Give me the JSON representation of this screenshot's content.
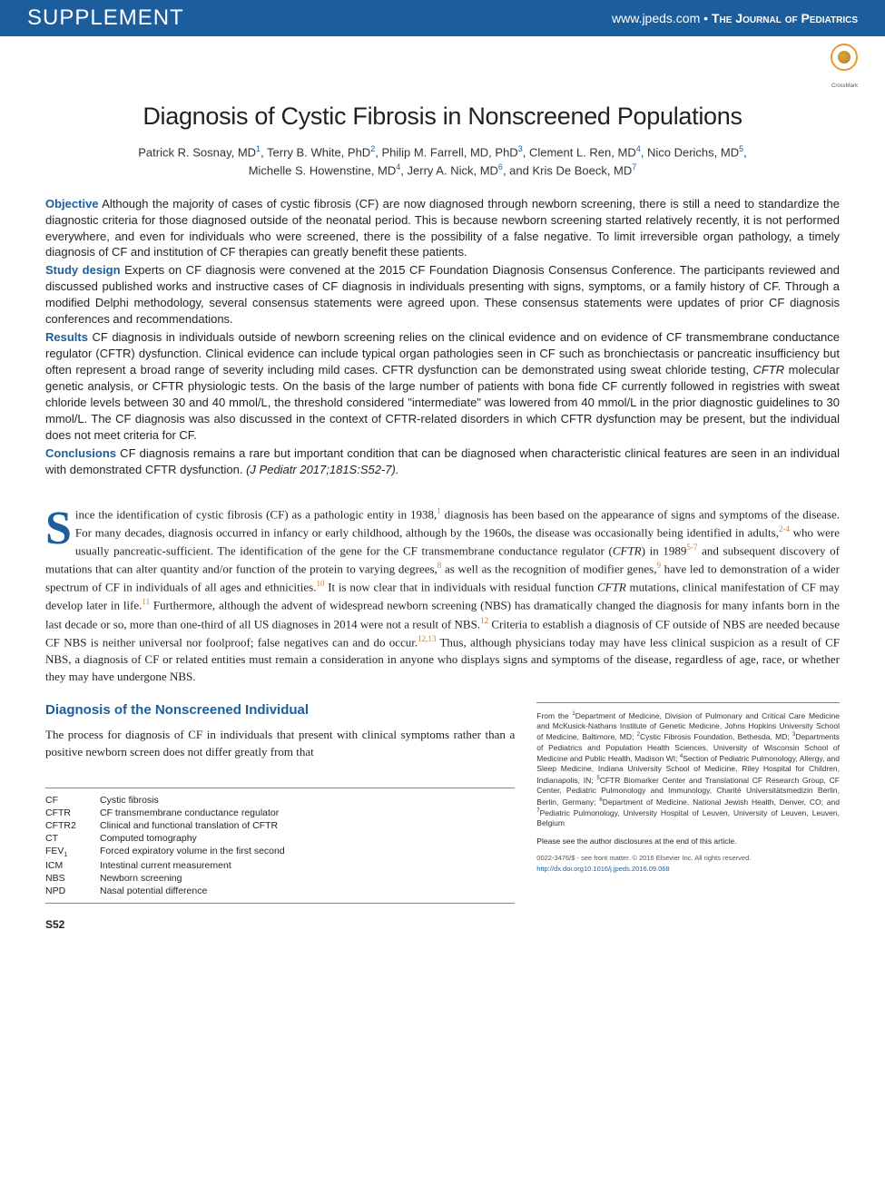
{
  "header": {
    "supplement": "SUPPLEMENT",
    "url": "www.jpeds.com",
    "dot": " • ",
    "journal": "The Journal of Pediatrics",
    "crossmark_label": "CrossMark"
  },
  "title": "Diagnosis of Cystic Fibrosis in Nonscreened Populations",
  "authors_html": "Patrick R. Sosnay, MD<sup>1</sup>, Terry B. White, PhD<sup>2</sup>, Philip M. Farrell, MD, PhD<sup>3</sup>, Clement L. Ren, MD<sup>4</sup>, Nico Derichs, MD<sup>5</sup>,<br>Michelle S. Howenstine, MD<sup>4</sup>, Jerry A. Nick, MD<sup>6</sup>, and Kris De Boeck, MD<sup>7</sup>",
  "abstract": {
    "objective_label": "Objective",
    "objective": " Although the majority of cases of cystic fibrosis (CF) are now diagnosed through newborn screening, there is still a need to standardize the diagnostic criteria for those diagnosed outside of the neonatal period. This is because newborn screening started relatively recently, it is not performed everywhere, and even for individuals who were screened, there is the possibility of a false negative. To limit irreversible organ pathology, a timely diagnosis of CF and institution of CF therapies can greatly benefit these patients.",
    "design_label": "Study design",
    "design": " Experts on CF diagnosis were convened at the 2015 CF Foundation Diagnosis Consensus Conference. The participants reviewed and discussed published works and instructive cases of CF diagnosis in individuals presenting with signs, symptoms, or a family history of CF. Through a modified Delphi methodology, several consensus statements were agreed upon. These consensus statements were updates of prior CF diagnosis conferences and recommendations.",
    "results_label": "Results",
    "results": " CF diagnosis in individuals outside of newborn screening relies on the clinical evidence and on evidence of CF transmembrane conductance regulator (CFTR) dysfunction. Clinical evidence can include typical organ pathologies seen in CF such as bronchiectasis or pancreatic insufficiency but often represent a broad range of severity including mild cases. CFTR dysfunction can be demonstrated using sweat chloride testing, CFTR molecular genetic analysis, or CFTR physiologic tests. On the basis of the large number of patients with bona fide CF currently followed in registries with sweat chloride levels between 30 and 40 mmol/L, the threshold considered \"intermediate\" was lowered from 40 mmol/L in the prior diagnostic guidelines to 30 mmol/L. The CF diagnosis was also discussed in the context of CFTR-related disorders in which CFTR dysfunction may be present, but the individual does not meet criteria for CF.",
    "results_italic_terms": [
      "CFTR"
    ],
    "conclusions_label": "Conclusions",
    "conclusions": " CF diagnosis remains a rare but important condition that can be diagnosed when characteristic clinical features are seen in an individual with demonstrated CFTR dysfunction.",
    "citation": " (J Pediatr 2017;181S:S52-7)."
  },
  "body_html": "<span class=\"dropcap\">S</span>ince the identification of cystic fibrosis (CF) as a pathologic entity in 1938,<sup>1</sup> diagnosis has been based on the appearance of signs and symptoms of the disease. For many decades, diagnosis occurred in infancy or early childhood, although by the 1960s, the disease was occasionally being identified in adults,<sup>2-4</sup> who were usually pancreatic-sufficient. The identification of the gene for the CF transmembrane conductance regulator (<em>CFTR</em>) in 1989<sup>5-7</sup> and subsequent discovery of mutations that can alter quantity and/or function of the protein to varying degrees,<sup>8</sup> as well as the recognition of modifier genes,<sup>9</sup> have led to demonstration of a wider spectrum of CF in individuals of all ages and ethnicities.<sup>10</sup> It is now clear that in individuals with residual function <em>CFTR</em> mutations, clinical manifestation of CF may develop later in life.<sup>11</sup> Furthermore, although the advent of widespread newborn screening (NBS) has dramatically changed the diagnosis for many infants born in the last decade or so, more than one-third of all US diagnoses in 2014 were not a result of NBS.<sup>12</sup> Criteria to establish a diagnosis of CF outside of NBS are needed because CF NBS is neither universal nor foolproof; false negatives can and do occur.<sup>12,13</sup> Thus, although physicians today may have less clinical suspicion as a result of CF NBS, a diagnosis of CF or related entities must remain a consideration in anyone who displays signs and symptoms of the disease, regardless of age, race, or whether they may have undergone NBS.",
  "section": {
    "heading": "Diagnosis of the Nonscreened Individual",
    "text": "The process for diagnosis of CF in individuals that present with clinical symptoms rather than a positive newborn screen does not differ greatly from that"
  },
  "abbreviations": [
    [
      "CF",
      "Cystic fibrosis"
    ],
    [
      "CFTR",
      "CF transmembrane conductance regulator"
    ],
    [
      "CFTR2",
      "Clinical and functional translation of CFTR"
    ],
    [
      "CT",
      "Computed tomography"
    ],
    [
      "FEV₁",
      "Forced expiratory volume in the first second"
    ],
    [
      "ICM",
      "Intestinal current measurement"
    ],
    [
      "NBS",
      "Newborn screening"
    ],
    [
      "NPD",
      "Nasal potential difference"
    ]
  ],
  "affiliations_html": "From the <sup>1</sup>Department of Medicine, Division of Pulmonary and Critical Care Medicine and McKusick-Nathans Institute of Genetic Medicine, Johns Hopkins University School of Medicine, Baltimore, MD; <sup>2</sup>Cystic Fibrosis Foundation, Bethesda, MD; <sup>3</sup>Departments of Pediatrics and Population Health Sciences, University of Wisconsin School of Medicine and Public Health, Madison WI; <sup>4</sup>Section of Pediatric Pulmonology, Allergy, and Sleep Medicine, Indiana University School of Medicine, Riley Hospital for Children, Indianapolis, IN; <sup>5</sup>CFTR Biomarker Center and Translational CF Research Group, CF Center, Pediatric Pulmonology and Immunology, Charité Universitätsmedizin Berlin, Berlin, Germany; <sup>6</sup>Department of Medicine, National Jewish Health, Denver, CO; and <sup>7</sup>Pediatric Pulmonology, University Hospital of Leuven, University of Leuven, Leuven, Belgium",
  "disclosure": "Please see the author disclosures at the end of this article.",
  "copyright": "0022-3476/$ - see front matter. © 2016 Elsevier Inc. All rights reserved.",
  "doi": "http://dx.doi.org10.1016/j.jpeds.2016.09.068",
  "page_number": "S52",
  "colors": {
    "brand_blue": "#1c5d9e",
    "sup_orange": "#c77f3a",
    "text": "#231f20"
  }
}
